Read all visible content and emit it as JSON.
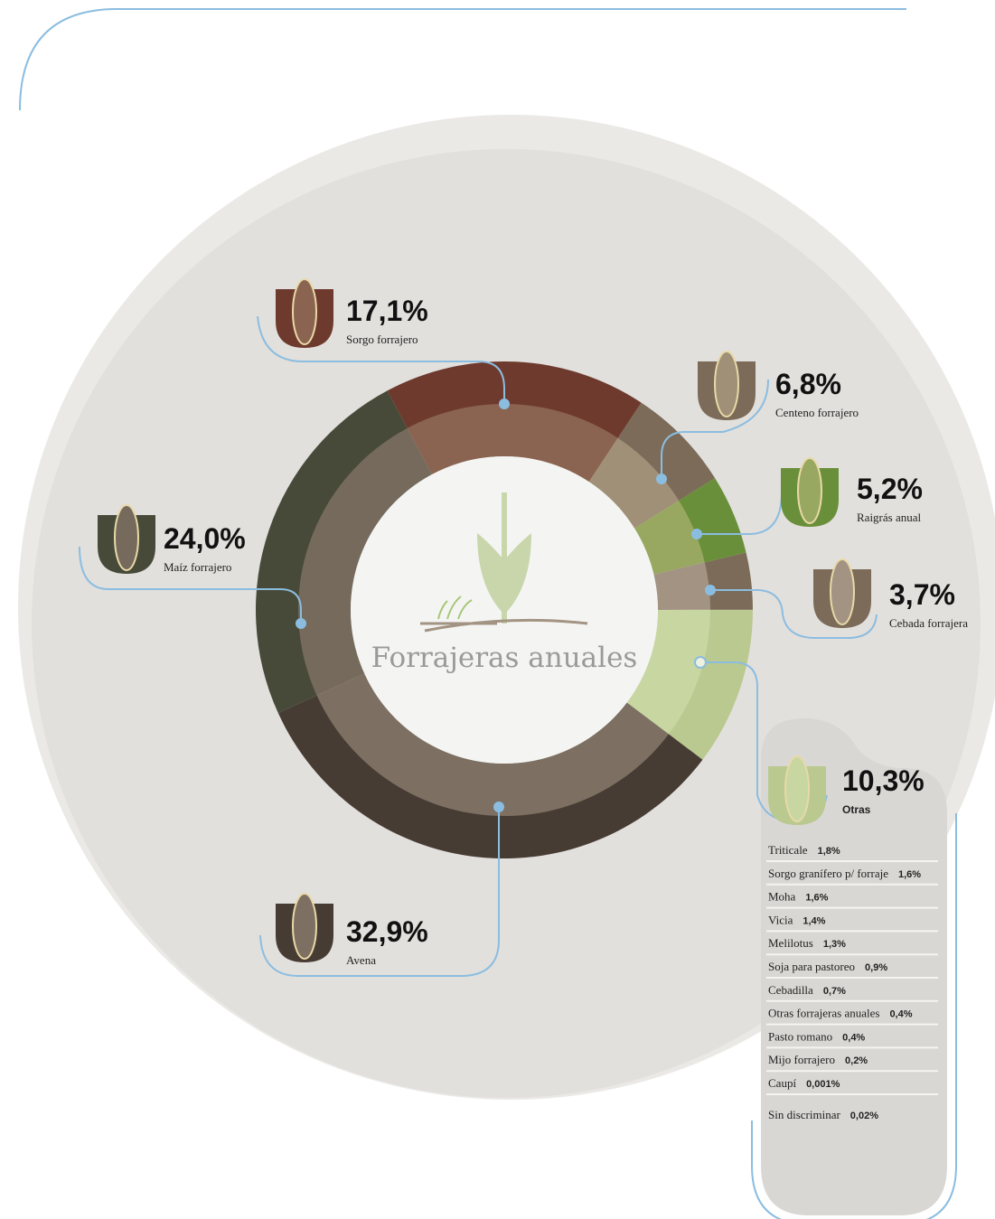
{
  "chart_data": {
    "type": "donut",
    "title": "Forrajeras anuales",
    "categories": [
      "Sorgo forrajero",
      "Centeno forrajero",
      "Raigrás anual",
      "Cebada forrajera",
      "Otras",
      "Avena",
      "Maíz forrajero"
    ],
    "values": [
      17.1,
      6.8,
      5.2,
      3.7,
      10.3,
      32.9,
      24.0
    ],
    "value_labels": [
      "17,1%",
      "6,8%",
      "5,2%",
      "3,7%",
      "10,3%",
      "32,9%",
      "24,0%"
    ],
    "colors": [
      "#6e3a2e",
      "#7b6b58",
      "#6a8f3a",
      "#7b6b58",
      "#b9c98f",
      "#473c34",
      "#474a38"
    ],
    "inner_colors": [
      "#8a6450",
      "#a09078",
      "#98a860",
      "#a39383",
      "#c8d6a2",
      "#7d7062",
      "#756a5c"
    ],
    "breakdown": {
      "categories": [
        "Triticale",
        "Sorgo granífero p/ forraje",
        "Moha",
        "Vicia",
        "Melilotus",
        "Soja para pastoreo",
        "Cebadilla",
        "Otras forrajeras anuales",
        "Pasto romano",
        "Mijo forrajero",
        "Caupí",
        "Sin discriminar"
      ],
      "values": [
        1.8,
        1.6,
        1.6,
        1.4,
        1.3,
        0.9,
        0.7,
        0.4,
        0.4,
        0.2,
        0.001,
        0.02
      ],
      "value_labels": [
        "1,8%",
        "1,6%",
        "1,6%",
        "1,4%",
        "1,3%",
        "0,9%",
        "0,7%",
        "0,4%",
        "0,4%",
        "0,2%",
        "0,001%",
        "0,02%"
      ]
    }
  }
}
